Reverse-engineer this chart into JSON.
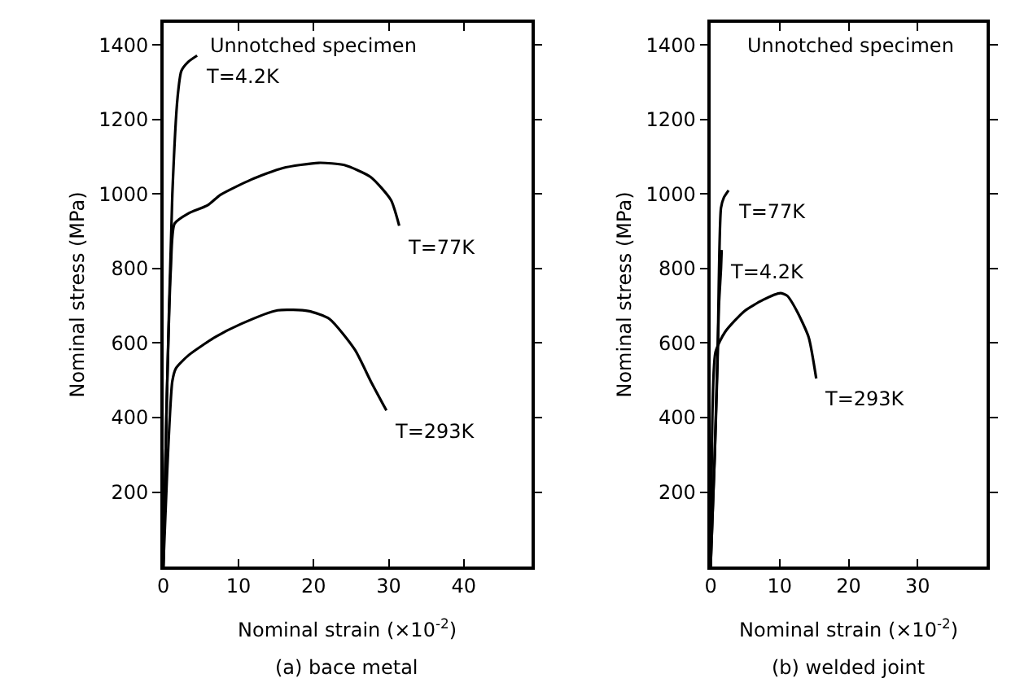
{
  "chart_data": [
    {
      "type": "line",
      "title": "(a) bace metal",
      "xlabel": "Nominal strain (×10$^{-2}$)",
      "ylabel": "Nominal stress (MPa)",
      "xlim": [
        0,
        49
      ],
      "ylim": [
        0,
        1460
      ],
      "xticks": [
        0,
        10,
        20,
        30,
        40
      ],
      "yticks": [
        200,
        400,
        600,
        800,
        1000,
        1200,
        1400
      ],
      "series": [
        {
          "color": "#000000",
          "x": [
            0,
            0.4,
            1.2,
            1.9,
            2.4,
            3.3,
            4.5
          ],
          "values": [
            0,
            400,
            1000,
            1261,
            1331,
            1355,
            1372
          ]
        },
        {
          "color": "#000000",
          "x": [
            0,
            0.4,
            1.0,
            1.5,
            3.4,
            5.9,
            7.6,
            11.7,
            15.9,
            20.7,
            24.1,
            27.6,
            30.3,
            31.4
          ],
          "values": [
            0,
            400,
            800,
            921,
            949,
            970,
            998,
            1039,
            1070,
            1084,
            1078,
            1046,
            984,
            915
          ]
        },
        {
          "color": "#000000",
          "x": [
            0,
            0.5,
            1.2,
            1.7,
            3.4,
            6.9,
            10.3,
            15.2,
            19.3,
            22.1,
            25.5,
            27.6,
            29.7
          ],
          "values": [
            0,
            250,
            498,
            533,
            568,
            616,
            651,
            688,
            686,
            665,
            582,
            498,
            419
          ]
        }
      ],
      "annotations": [
        "Unnotched specimen",
        {
          "text": "T=4.2K",
          "x": 4.5,
          "y": 1372
        },
        {
          "text": "T=77K",
          "x": 31.4,
          "y": 915
        },
        {
          "text": "T=293K",
          "x": 29.7,
          "y": 419
        }
      ]
    },
    {
      "type": "line",
      "title": "(b) welded joint",
      "xlabel": "Nominal strain (×10$^{-2}$)",
      "ylabel": "Nominal stress (MPa)",
      "xlim": [
        0,
        40
      ],
      "ylim": [
        0,
        1460
      ],
      "xticks": [
        0,
        10,
        20,
        30
      ],
      "yticks": [
        200,
        400,
        600,
        800,
        1000,
        1200,
        1400
      ],
      "series": [
        {
          "color": "#000000",
          "x": [
            0,
            0.6,
            1.0,
            1.5,
            1.9,
            2.6
          ],
          "values": [
            0,
            300,
            547,
            963,
            990,
            1010
          ]
        },
        {
          "color": "#000000",
          "x": [
            0,
            0.6,
            1.2,
            1.5,
            1.6
          ],
          "values": [
            0,
            300,
            700,
            800,
            850
          ]
        },
        {
          "color": "#000000",
          "x": [
            0,
            0.1,
            0.7,
            2.1,
            4.9,
            7.6,
            10.1,
            11.1,
            12.5,
            14.2,
            15.3
          ],
          "values": [
            0,
            131,
            575,
            630,
            686,
            716,
            734,
            727,
            686,
            616,
            505
          ]
        }
      ],
      "annotations": [
        "Unnotched specimen",
        {
          "text": "T=77K",
          "x": 2.6,
          "y": 1010
        },
        {
          "text": "T=4.2K",
          "x": 1.6,
          "y": 850
        },
        {
          "text": "T=293K",
          "x": 15.3,
          "y": 505
        }
      ]
    }
  ]
}
